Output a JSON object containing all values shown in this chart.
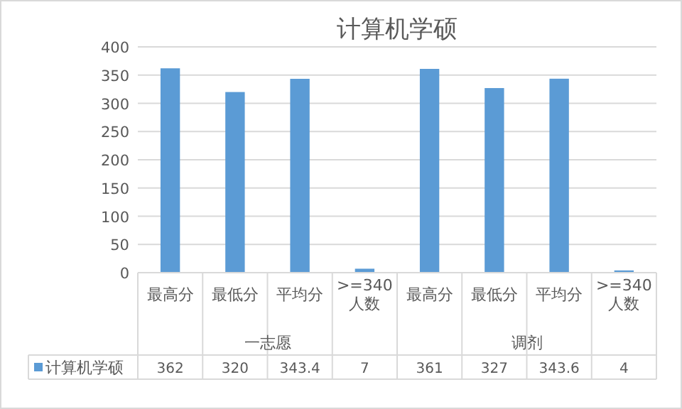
{
  "chart_data": {
    "type": "bar",
    "title": "计算机学硕",
    "categories": [
      "最高分",
      "最低分",
      "平均分",
      ">=340人数",
      "最高分",
      "最低分",
      "平均分",
      ">=340人数"
    ],
    "series": [
      {
        "name": "计算机学硕",
        "color": "#5b9bd5",
        "values": [
          362,
          320,
          343.4,
          7,
          361,
          327,
          343.6,
          4
        ]
      }
    ],
    "annotations": [
      "一志愿",
      "调剂"
    ],
    "ylim": [
      0,
      400
    ],
    "yticks": [
      0,
      50,
      100,
      150,
      200,
      250,
      300,
      350,
      400
    ],
    "grid": "y",
    "data_labels": true,
    "legend": "bottom"
  }
}
